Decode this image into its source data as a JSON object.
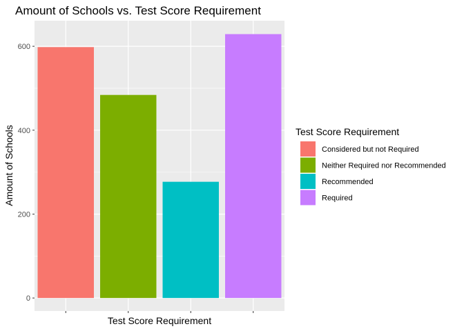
{
  "chart_data": {
    "type": "bar",
    "title": "Amount of Schools vs. Test Score Requirement",
    "xlabel": "Test Score Requirement",
    "ylabel": "Amount of Schools",
    "categories": [
      "Considered but not Required",
      "Neither Required nor Recommended",
      "Recommended",
      "Required"
    ],
    "values": [
      598,
      484,
      277,
      629
    ],
    "colors": [
      "#F8766D",
      "#7CAE00",
      "#00BFC4",
      "#C77CFF"
    ],
    "ylim": [
      -31,
      661
    ],
    "yticks": [
      0,
      200,
      400,
      600
    ],
    "grid": true,
    "legend": {
      "title": "Test Score Requirement",
      "position": "right"
    }
  }
}
